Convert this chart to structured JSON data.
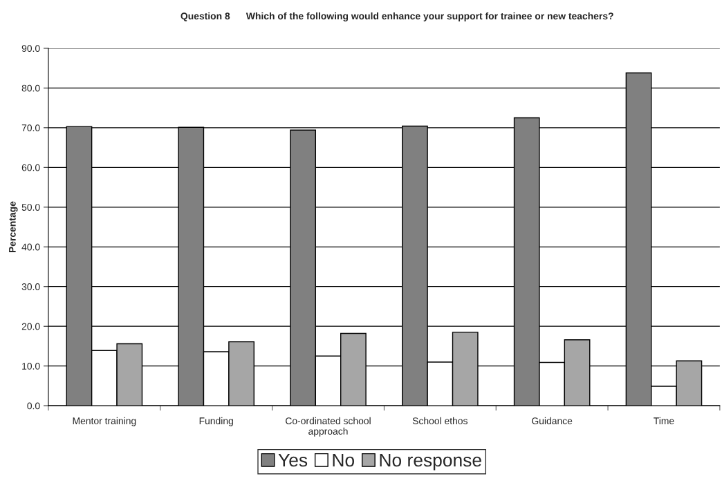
{
  "chart_data": {
    "type": "bar",
    "title": "Question 8      Which of the following would enhance your support for trainee or new teachers?",
    "ylabel": "Percentage",
    "categories": [
      "Mentor training",
      "Funding",
      "Co-ordinated school\napproach",
      "School ethos",
      "Guidance",
      "Time"
    ],
    "series": [
      {
        "name": "Yes",
        "color": "#808080",
        "values": [
          70.3,
          70.1,
          69.4,
          70.4,
          72.5,
          83.8
        ]
      },
      {
        "name": "No",
        "color": "#ffffff",
        "values": [
          13.9,
          13.6,
          12.5,
          11.0,
          10.9,
          4.9
        ]
      },
      {
        "name": "No response",
        "color": "#a6a6a6",
        "values": [
          15.6,
          16.1,
          18.2,
          18.5,
          16.6,
          11.3
        ]
      }
    ],
    "ylim": [
      0,
      90
    ],
    "yticks": [
      {
        "value": 0,
        "label": "0.0"
      },
      {
        "value": 10,
        "label": "10.0"
      },
      {
        "value": 20,
        "label": "20.0"
      },
      {
        "value": 30,
        "label": "30.0"
      },
      {
        "value": 40,
        "label": "40.0"
      },
      {
        "value": 50,
        "label": "50.0"
      },
      {
        "value": 60,
        "label": "60.0"
      },
      {
        "value": 70,
        "label": "70.0"
      },
      {
        "value": 80,
        "label": "80.0"
      },
      {
        "value": 90,
        "label": "90.0"
      }
    ],
    "grid": "y",
    "legend": "bottom"
  }
}
